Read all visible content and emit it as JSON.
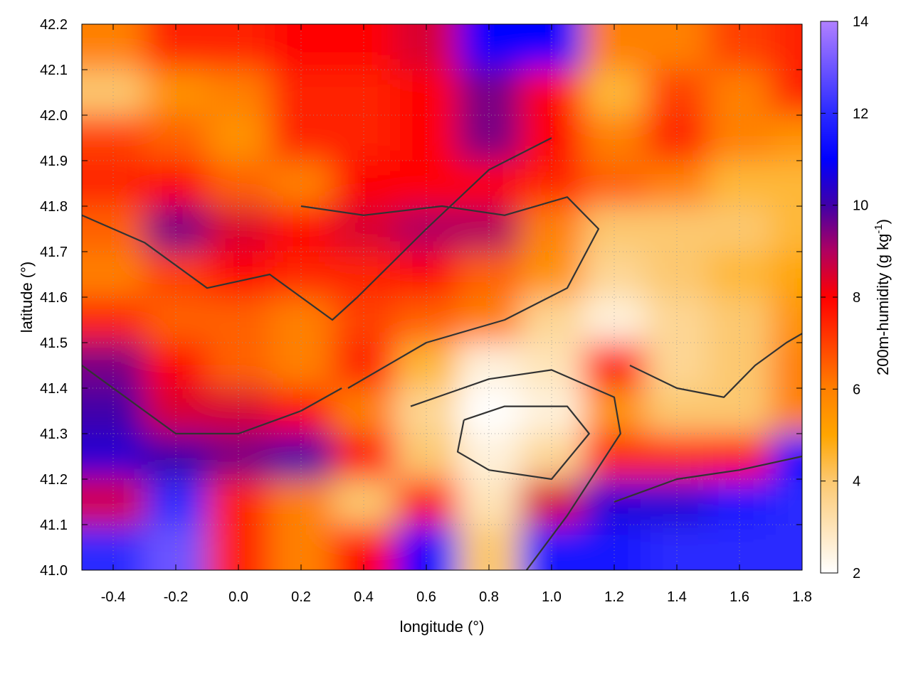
{
  "chart_data": {
    "type": "heatmap",
    "title": "",
    "xlabel": "longitude (°)",
    "ylabel": "latitude (°)",
    "colorbar_label": "200m-humidity (g kg-1)",
    "colorbar_label_parts": {
      "main": "200m-humidity (g kg",
      "sup": "-1",
      "end": ")"
    },
    "xlim": [
      -0.5,
      1.8
    ],
    "ylim": [
      41.0,
      42.2
    ],
    "clim": [
      2,
      14
    ],
    "xticks": [
      "-0.4",
      "-0.2",
      "0.0",
      "0.2",
      "0.4",
      "0.6",
      "0.8",
      "1.0",
      "1.2",
      "1.4",
      "1.6",
      "1.8"
    ],
    "yticks": [
      "41.0",
      "41.1",
      "41.2",
      "41.3",
      "41.4",
      "41.5",
      "41.6",
      "41.7",
      "41.8",
      "41.9",
      "42.0",
      "42.1",
      "42.2"
    ],
    "cticks": [
      "2",
      "4",
      "6",
      "8",
      "10",
      "12",
      "14"
    ],
    "grid": true,
    "colormap": [
      {
        "v": 2,
        "c": "#ffffff"
      },
      {
        "v": 4,
        "c": "#fcc870"
      },
      {
        "v": 5,
        "c": "#ffa500"
      },
      {
        "v": 6,
        "c": "#ff8000"
      },
      {
        "v": 7,
        "c": "#ff4000"
      },
      {
        "v": 8,
        "c": "#ff0000"
      },
      {
        "v": 9,
        "c": "#b00060"
      },
      {
        "v": 10,
        "c": "#4000a8"
      },
      {
        "v": 11,
        "c": "#0000ff"
      },
      {
        "v": 12,
        "c": "#2a2aff"
      },
      {
        "v": 14,
        "c": "#b080ff"
      }
    ],
    "grid_x": [
      -0.4,
      -0.2,
      0.0,
      0.2,
      0.4,
      0.6,
      0.8,
      1.0,
      1.2,
      1.4,
      1.6,
      1.8
    ],
    "grid_y": [
      42.15,
      42.05,
      41.95,
      41.85,
      41.75,
      41.65,
      41.55,
      41.45,
      41.35,
      41.25,
      41.15,
      41.05
    ],
    "values": [
      [
        6,
        7.5,
        7.5,
        8,
        8,
        8.5,
        11,
        11,
        6,
        6,
        7,
        7.5
      ],
      [
        4,
        5.5,
        6,
        7.5,
        7.5,
        8,
        9.5,
        8,
        4.5,
        7,
        6,
        7.5
      ],
      [
        7,
        6.5,
        5.5,
        7.5,
        7.5,
        8,
        9.5,
        8,
        6,
        7.5,
        6,
        5.5
      ],
      [
        7.5,
        8,
        6.5,
        6,
        8,
        8,
        8,
        7.5,
        6.5,
        6,
        4.5,
        4.5
      ],
      [
        6.5,
        9.5,
        8.5,
        8,
        8.5,
        9,
        9,
        6,
        4,
        4,
        4,
        4.5
      ],
      [
        6,
        7,
        8,
        7.5,
        7.5,
        8,
        6.5,
        5.5,
        3.5,
        4,
        4.5,
        5
      ],
      [
        7.5,
        6.5,
        6.5,
        6,
        7,
        6.5,
        6,
        3.5,
        2.5,
        3.5,
        4,
        5.5
      ],
      [
        9.5,
        8,
        6.5,
        6,
        7.5,
        4.5,
        2.5,
        3,
        8,
        3.5,
        4,
        6
      ],
      [
        10,
        8.5,
        8.5,
        8,
        6,
        3.5,
        2,
        2.5,
        5.5,
        4,
        4,
        6
      ],
      [
        10.5,
        10,
        9.5,
        10,
        8,
        4,
        2.5,
        3.5,
        7.5,
        7.5,
        8,
        11
      ],
      [
        8.5,
        12,
        7.5,
        6,
        4,
        8,
        3,
        8.5,
        10.5,
        10.5,
        11.5,
        12
      ],
      [
        12,
        13,
        7.5,
        6,
        8,
        11,
        4,
        11.5,
        11.5,
        12,
        12,
        12
      ]
    ],
    "contours": [
      [
        [
          0.72,
          41.33
        ],
        [
          0.85,
          41.36
        ],
        [
          1.05,
          41.36
        ],
        [
          1.12,
          41.3
        ],
        [
          1.0,
          41.2
        ],
        [
          0.8,
          41.22
        ],
        [
          0.7,
          41.26
        ],
        [
          0.72,
          41.33
        ]
      ],
      [
        [
          0.55,
          41.36
        ],
        [
          0.8,
          41.42
        ],
        [
          1.0,
          41.44
        ],
        [
          1.2,
          41.38
        ],
        [
          1.22,
          41.3
        ],
        [
          1.05,
          41.12
        ],
        [
          0.92,
          41.0
        ]
      ],
      [
        [
          0.35,
          41.4
        ],
        [
          0.6,
          41.5
        ],
        [
          0.85,
          41.55
        ],
        [
          1.05,
          41.62
        ],
        [
          1.15,
          41.75
        ],
        [
          1.05,
          41.82
        ],
        [
          0.85,
          41.78
        ],
        [
          0.65,
          41.8
        ],
        [
          0.4,
          41.78
        ],
        [
          0.2,
          41.8
        ]
      ],
      [
        [
          -0.5,
          41.45
        ],
        [
          -0.2,
          41.3
        ],
        [
          0.0,
          41.3
        ],
        [
          0.2,
          41.35
        ],
        [
          0.33,
          41.4
        ]
      ],
      [
        [
          -0.5,
          41.78
        ],
        [
          -0.3,
          41.72
        ],
        [
          -0.1,
          41.62
        ],
        [
          0.1,
          41.65
        ],
        [
          0.3,
          41.55
        ],
        [
          0.38,
          41.6
        ],
        [
          0.6,
          41.75
        ],
        [
          0.8,
          41.88
        ],
        [
          1.0,
          41.95
        ]
      ],
      [
        [
          1.25,
          41.45
        ],
        [
          1.4,
          41.4
        ],
        [
          1.55,
          41.38
        ],
        [
          1.65,
          41.45
        ],
        [
          1.75,
          41.5
        ],
        [
          1.8,
          41.52
        ]
      ],
      [
        [
          1.2,
          41.15
        ],
        [
          1.4,
          41.2
        ],
        [
          1.6,
          41.22
        ],
        [
          1.8,
          41.25
        ]
      ]
    ]
  }
}
